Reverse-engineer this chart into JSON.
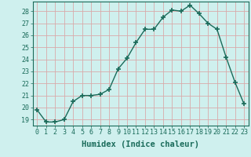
{
  "x": [
    0,
    1,
    2,
    3,
    4,
    5,
    6,
    7,
    8,
    9,
    10,
    11,
    12,
    13,
    14,
    15,
    16,
    17,
    18,
    19,
    20,
    21,
    22,
    23
  ],
  "y": [
    19.8,
    18.8,
    18.8,
    19.0,
    20.5,
    21.0,
    21.0,
    21.1,
    21.5,
    23.2,
    24.1,
    25.4,
    26.5,
    26.5,
    27.5,
    28.1,
    28.0,
    28.5,
    27.8,
    27.0,
    26.5,
    24.2,
    22.1,
    20.3
  ],
  "line_color": "#1a6b5a",
  "bg_color": "#cff0ee",
  "grid_color": "#d9aaaa",
  "xlabel": "Humidex (Indice chaleur)",
  "ylim": [
    18.5,
    28.8
  ],
  "xlim": [
    -0.5,
    23.5
  ],
  "yticks": [
    19,
    20,
    21,
    22,
    23,
    24,
    25,
    26,
    27,
    28
  ],
  "xticks": [
    0,
    1,
    2,
    3,
    4,
    5,
    6,
    7,
    8,
    9,
    10,
    11,
    12,
    13,
    14,
    15,
    16,
    17,
    18,
    19,
    20,
    21,
    22,
    23
  ],
  "marker": "+",
  "marker_size": 4,
  "line_width": 1.0,
  "xlabel_fontsize": 7.5,
  "tick_fontsize": 6.0
}
